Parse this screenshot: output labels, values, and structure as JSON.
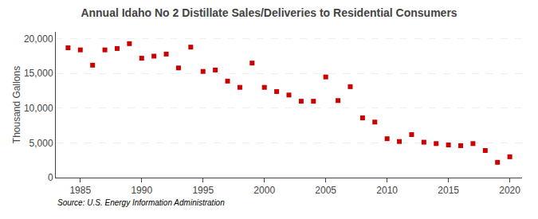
{
  "chart_data": {
    "type": "scatter",
    "title": "Annual Idaho No 2 Distillate Sales/Deliveries to Residential Consumers",
    "ylabel": "Thousand Gallons",
    "annotations": [
      "Source: U.S. Energy Information Administration"
    ],
    "x": [
      1984,
      1985,
      1986,
      1987,
      1988,
      1989,
      1990,
      1991,
      1992,
      1993,
      1994,
      1995,
      1996,
      1997,
      1998,
      1999,
      2000,
      2001,
      2002,
      2003,
      2004,
      2005,
      2006,
      2007,
      2008,
      2009,
      2010,
      2011,
      2012,
      2013,
      2014,
      2015,
      2016,
      2017,
      2018,
      2019,
      2020
    ],
    "values": [
      18700,
      18400,
      16200,
      18400,
      18600,
      19300,
      17200,
      17500,
      17800,
      15800,
      18800,
      15300,
      15500,
      13900,
      13000,
      16500,
      13000,
      12400,
      11900,
      11000,
      11000,
      14500,
      11100,
      13100,
      8600,
      8000,
      5600,
      5200,
      6200,
      5100,
      4900,
      4700,
      4600,
      4900,
      3900,
      2200,
      3000
    ],
    "color": "#cc0000",
    "marker": "square",
    "xlim": [
      1983,
      2021
    ],
    "xticks": [
      1985,
      1990,
      1995,
      2000,
      2005,
      2010,
      2015,
      2020
    ],
    "ylim": [
      0,
      21000
    ],
    "yticks": [
      0,
      {
        "value": 5000,
        "label": "5,000"
      },
      {
        "value": 10000,
        "label": "10,000"
      },
      {
        "value": 15000,
        "label": "15,000"
      },
      {
        "value": 20000,
        "label": "20,000"
      }
    ],
    "grid": "y"
  }
}
